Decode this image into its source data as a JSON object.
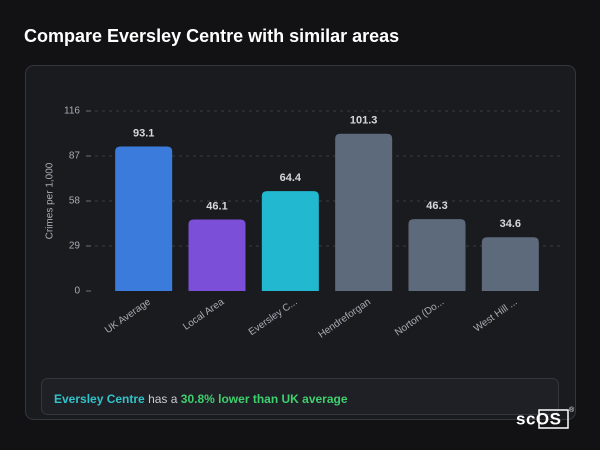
{
  "header": {
    "title": "Compare Eversley Centre with similar areas"
  },
  "chart_data": {
    "type": "bar",
    "y_label": "Crimes per 1,000",
    "categories": [
      "UK Average",
      "Local Area",
      "Eversley C...",
      "Hendreforgan",
      "Norton (Do...",
      "West Hill ..."
    ],
    "values": [
      93.1,
      46.1,
      64.4,
      101.3,
      46.3,
      34.6
    ],
    "colors": [
      "#3a7bdc",
      "#7b4fd8",
      "#22b9d0",
      "#5d6a7c",
      "#5d6a7c",
      "#5d6a7c"
    ],
    "ylim": [
      0,
      116
    ],
    "yticks": [
      0,
      29,
      58,
      87,
      116
    ],
    "grid": true
  },
  "summary": {
    "area": "Eversley Centre",
    "connector": "has a",
    "comparison": "30.8% lower than UK average"
  },
  "logo": {
    "text": "scOS",
    "mark": "®"
  }
}
